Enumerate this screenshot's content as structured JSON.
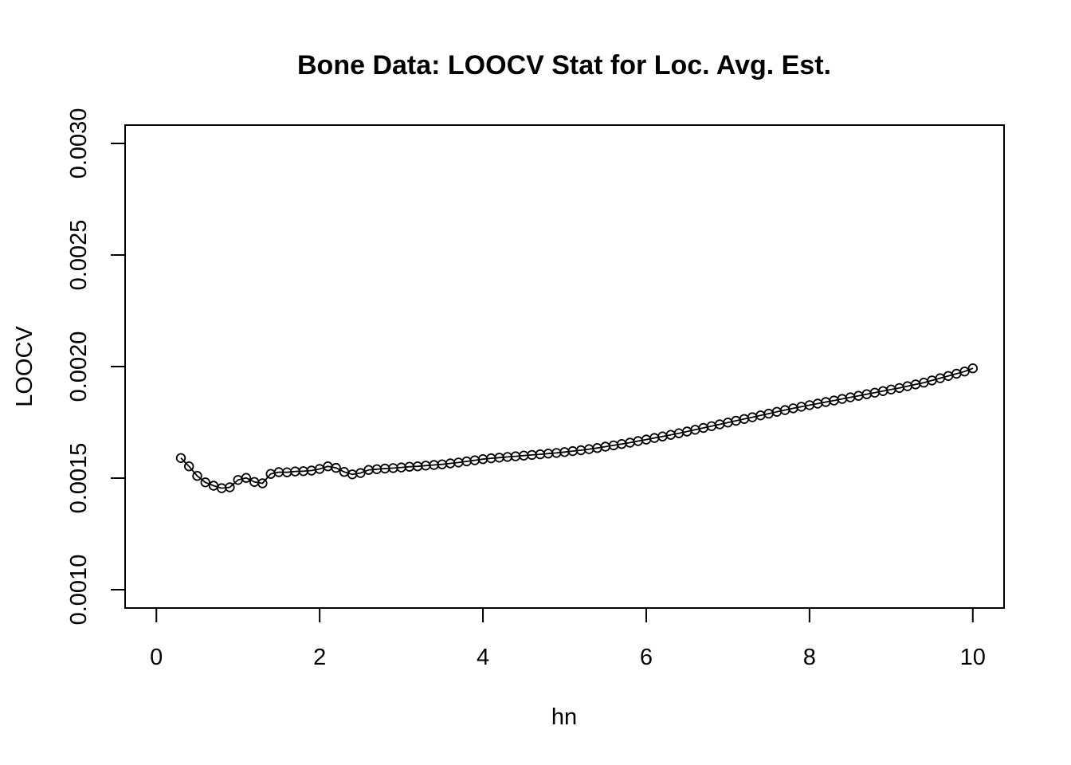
{
  "window": {
    "background": "#ffffff"
  },
  "chart_data": {
    "type": "line",
    "subtype": "scatter-line-overplot",
    "marker": "open-circle",
    "title": "Bone Data: LOOCV Stat for Loc. Avg. Est.",
    "xlabel": "hn",
    "ylabel": "LOOCV",
    "x_ticks": [
      0,
      2,
      4,
      6,
      8,
      10
    ],
    "x_tick_labels": [
      "0",
      "2",
      "4",
      "6",
      "8",
      "10"
    ],
    "y_ticks": [
      0.001,
      0.0015,
      0.002,
      0.0025,
      0.003
    ],
    "y_tick_labels": [
      "0.0010",
      "0.0015",
      "0.0020",
      "0.0025",
      "0.0030"
    ],
    "xlim": [
      -0.383,
      10.383
    ],
    "ylim": [
      0.000918,
      0.003082
    ],
    "grid": false,
    "legend": "none",
    "colors": {
      "stroke": "#000000",
      "background": "#ffffff"
    },
    "x": [
      0.3,
      0.4,
      0.5,
      0.6,
      0.7,
      0.8,
      0.9,
      1.0,
      1.1,
      1.2,
      1.3,
      1.4,
      1.5,
      1.6,
      1.7,
      1.8,
      1.9,
      2.0,
      2.1,
      2.2,
      2.3,
      2.4,
      2.5,
      2.6,
      2.7,
      2.8,
      2.9,
      3.0,
      3.1,
      3.2,
      3.3,
      3.4,
      3.5,
      3.6,
      3.7,
      3.8,
      3.9,
      4.0,
      4.1,
      4.2,
      4.3,
      4.4,
      4.5,
      4.6,
      4.7,
      4.8,
      4.9,
      5.0,
      5.1,
      5.2,
      5.3,
      5.4,
      5.5,
      5.6,
      5.7,
      5.8,
      5.9,
      6.0,
      6.1,
      6.2,
      6.3,
      6.4,
      6.5,
      6.6,
      6.7,
      6.8,
      6.9,
      7.0,
      7.1,
      7.2,
      7.3,
      7.4,
      7.5,
      7.6,
      7.7,
      7.8,
      7.9,
      8.0,
      8.1,
      8.2,
      8.3,
      8.4,
      8.5,
      8.6,
      8.7,
      8.8,
      8.9,
      9.0,
      9.1,
      9.2,
      9.3,
      9.4,
      9.5,
      9.6,
      9.7,
      9.8,
      9.9,
      10.0
    ],
    "y": [
      0.00159,
      0.001553,
      0.00151,
      0.001481,
      0.001466,
      0.001455,
      0.001459,
      0.001492,
      0.001501,
      0.001483,
      0.001477,
      0.001519,
      0.001527,
      0.001526,
      0.00153,
      0.001531,
      0.001534,
      0.001541,
      0.001553,
      0.001546,
      0.001528,
      0.001517,
      0.001523,
      0.001537,
      0.00154,
      0.001543,
      0.001545,
      0.001548,
      0.001551,
      0.001553,
      0.001556,
      0.001559,
      0.001562,
      0.001566,
      0.00157,
      0.001575,
      0.00158,
      0.001585,
      0.001589,
      0.001592,
      0.001595,
      0.001598,
      0.001601,
      0.001604,
      0.001607,
      0.00161,
      0.001613,
      0.001617,
      0.001621,
      0.001625,
      0.00163,
      0.001635,
      0.001641,
      0.001647,
      0.001653,
      0.001659,
      0.001666,
      0.001673,
      0.00168,
      0.001687,
      0.001694,
      0.001701,
      0.001709,
      0.001717,
      0.001725,
      0.001733,
      0.001741,
      0.001749,
      0.001757,
      0.001765,
      0.001773,
      0.001781,
      0.001789,
      0.001797,
      0.001805,
      0.001813,
      0.00182,
      0.001827,
      0.001834,
      0.001841,
      0.001848,
      0.001855,
      0.001862,
      0.001869,
      0.001876,
      0.001883,
      0.00189,
      0.001897,
      0.001904,
      0.001912,
      0.00192,
      0.001928,
      0.001938,
      0.001948,
      0.001958,
      0.001968,
      0.001978,
      0.001992
    ]
  }
}
